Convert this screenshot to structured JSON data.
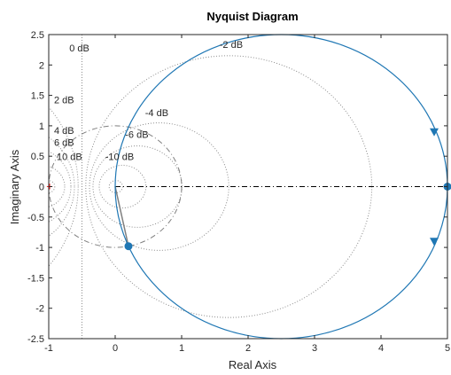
{
  "chart_data": {
    "type": "line",
    "title": "Nyquist Diagram",
    "xlabel": "Real Axis",
    "ylabel": "Imaginary Axis",
    "xlim": [
      -1,
      5
    ],
    "ylim": [
      -2.5,
      2.5
    ],
    "x_ticks": [
      "-1",
      "0",
      "1",
      "2",
      "3",
      "4",
      "5"
    ],
    "y_ticks": [
      "2.5",
      "2",
      "1.5",
      "1",
      "0.5",
      "0",
      "-0.5",
      "-1",
      "-1.5",
      "-2",
      "-2.5"
    ],
    "grid": "M-circles",
    "grid_labels": [
      "0 dB",
      "-2 dB",
      "-4 dB",
      "-6 dB",
      "-10 dB",
      "2 dB",
      "4 dB",
      "6 dB",
      "10 dB"
    ],
    "series": [
      {
        "type": "circle",
        "center": [
          2.5,
          0
        ],
        "radius": 2.5,
        "color": "#1f77b4"
      }
    ],
    "markers": [
      {
        "x": 5,
        "y": 0,
        "shape": "dot"
      },
      {
        "x": 0.2,
        "y": -0.98,
        "shape": "dot"
      }
    ],
    "arrows": [
      {
        "x": 4.8,
        "y": 0.9,
        "direction": "down"
      },
      {
        "x": 4.8,
        "y": -0.9,
        "direction": "down"
      }
    ],
    "critical_point": {
      "x": -1,
      "y": 0
    },
    "unit_circle": {
      "center": [
        0,
        0
      ],
      "radius": 1
    },
    "colors": {
      "curve": "#1f77b4",
      "grid": "#8c8c8c",
      "critical": "#ff0000",
      "unit_circle": "#7f7f7f"
    }
  }
}
